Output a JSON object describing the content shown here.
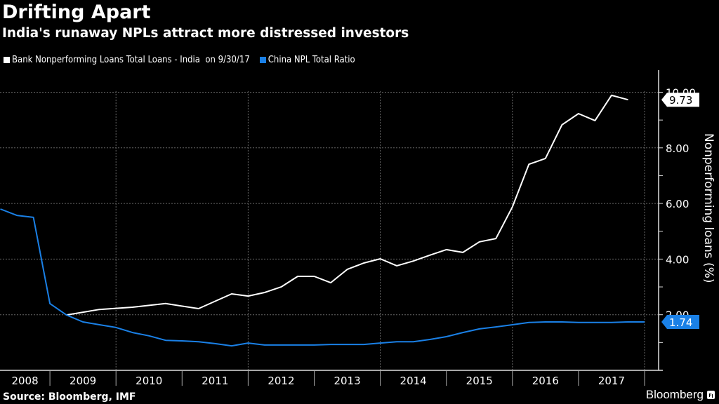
{
  "header": {
    "title": "Drifting Apart",
    "subtitle": "India's runaway NPLs attract more distressed investors"
  },
  "legend": [
    {
      "label": "Bank Nonperforming Loans Total Loans - India  on 9/30/17",
      "color": "#ffffff"
    },
    {
      "label": "China NPL Total Ratio",
      "color": "#1a80e6"
    }
  ],
  "footer": {
    "source": "Source: Bloomberg, IMF",
    "brand": "Bloomberg"
  },
  "chart_data": {
    "type": "line",
    "title": "Drifting Apart",
    "subtitle": "India's runaway NPLs attract more distressed investors",
    "xlabel": "",
    "ylabel": "Nonperforming loans (%)",
    "ylim": [
      0,
      10.5
    ],
    "xlim": [
      2008.0,
      2018.0
    ],
    "y_ticks": [
      "2.00",
      "4.00",
      "6.00",
      "8.00",
      "10.00"
    ],
    "y_tick_values": [
      2,
      4,
      6,
      8,
      10
    ],
    "x_tick_labels": [
      "2008",
      "2009",
      "2010",
      "2011",
      "2012",
      "2013",
      "2014",
      "2015",
      "2016",
      "2017"
    ],
    "grid": true,
    "legend_position": "top-left",
    "series": [
      {
        "name": "Bank Nonperforming Loans Total Loans - India  on 9/30/17",
        "color": "#ffffff",
        "last_label": "9.73",
        "x": [
          2009.25,
          2009.75,
          2010.25,
          2010.75,
          2011.25,
          2011.75,
          2012.0,
          2012.25,
          2012.5,
          2012.75,
          2013.0,
          2013.25,
          2013.5,
          2013.75,
          2014.0,
          2014.25,
          2014.5,
          2014.75,
          2015.0,
          2015.25,
          2015.5,
          2015.75,
          2016.0,
          2016.25,
          2016.5,
          2016.75,
          2017.0,
          2017.25,
          2017.5,
          2017.75
        ],
        "values": [
          1.99,
          2.19,
          2.27,
          2.4,
          2.22,
          2.75,
          2.67,
          2.8,
          3.0,
          3.38,
          3.38,
          3.15,
          3.63,
          3.86,
          4.01,
          3.76,
          3.93,
          4.14,
          4.34,
          4.24,
          4.62,
          4.74,
          5.88,
          7.41,
          7.62,
          8.83,
          9.23,
          8.98,
          9.89,
          9.73
        ]
      },
      {
        "name": "China NPL Total Ratio",
        "color": "#1a80e6",
        "last_label": "1.74",
        "x": [
          2008.25,
          2008.5,
          2008.75,
          2009.0,
          2009.25,
          2009.5,
          2009.75,
          2010.0,
          2010.25,
          2010.5,
          2010.75,
          2011.0,
          2011.25,
          2011.5,
          2011.75,
          2012.0,
          2012.25,
          2012.5,
          2012.75,
          2013.0,
          2013.25,
          2013.5,
          2013.75,
          2014.0,
          2014.25,
          2014.5,
          2014.75,
          2015.0,
          2015.25,
          2015.5,
          2015.75,
          2016.0,
          2016.25,
          2016.5,
          2016.75,
          2017.0,
          2017.25,
          2017.5,
          2017.75,
          2018.0
        ],
        "values": [
          5.8,
          5.57,
          5.5,
          2.4,
          1.99,
          1.74,
          1.64,
          1.54,
          1.36,
          1.24,
          1.08,
          1.06,
          1.03,
          0.96,
          0.88,
          0.98,
          0.91,
          0.91,
          0.91,
          0.91,
          0.93,
          0.93,
          0.93,
          0.98,
          1.03,
          1.03,
          1.11,
          1.21,
          1.36,
          1.49,
          1.56,
          1.64,
          1.72,
          1.74,
          1.74,
          1.72,
          1.72,
          1.72,
          1.74,
          1.74
        ]
      }
    ]
  }
}
